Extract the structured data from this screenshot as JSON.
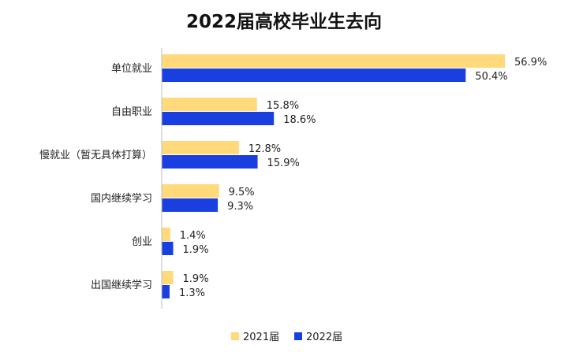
{
  "chart_data": {
    "type": "bar",
    "orientation": "horizontal",
    "title": "2022届高校毕业生去向",
    "categories": [
      "单位就业",
      "自由职业",
      "慢就业（暂无具体打算）",
      "国内继续学习",
      "创业",
      "出国继续学习"
    ],
    "series": [
      {
        "name": "2021届",
        "color": "#FFD97A",
        "values": [
          56.9,
          15.8,
          12.8,
          9.5,
          1.4,
          1.9
        ],
        "labels": [
          "56.9%",
          "15.8%",
          "12.8%",
          "9.5%",
          "1.4%",
          "1.9%"
        ]
      },
      {
        "name": "2022届",
        "color": "#1A3FE0",
        "values": [
          50.4,
          18.6,
          15.9,
          9.3,
          1.9,
          1.3
        ],
        "labels": [
          "50.4%",
          "18.6%",
          "15.9%",
          "9.3%",
          "1.9%",
          "1.3%"
        ]
      }
    ],
    "xlim": [
      0,
      60
    ],
    "grid": false,
    "legend_position": "bottom"
  }
}
